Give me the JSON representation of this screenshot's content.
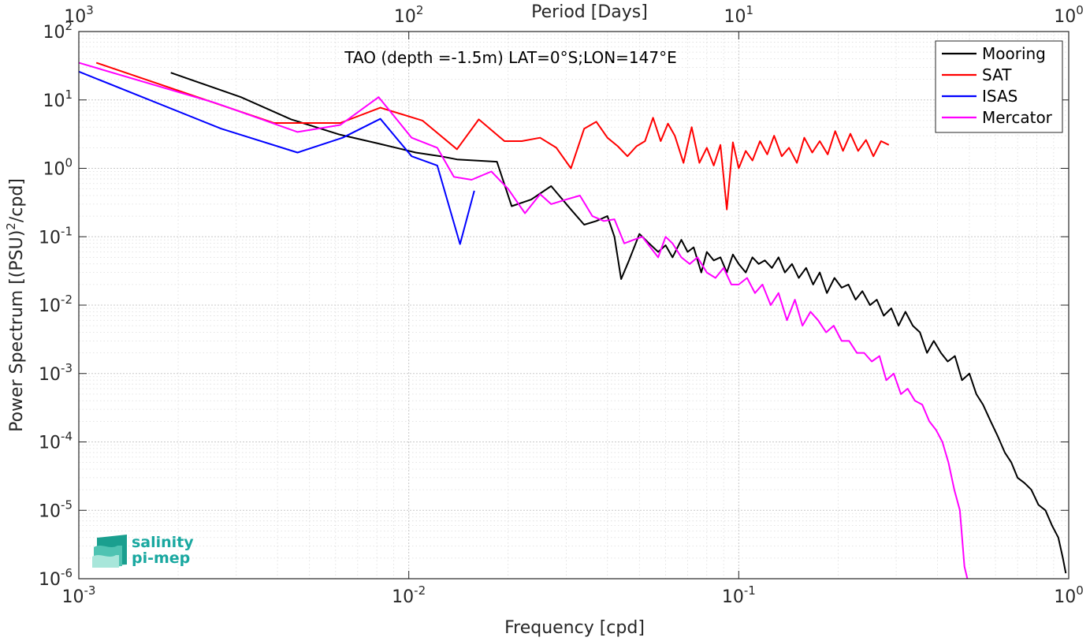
{
  "chart_data": {
    "type": "line",
    "title": "TAO (depth =-1.5m) LAT=0°S;LON=147°E",
    "xlabel": "Frequency [cpd]",
    "ylabel_main": "Power Spectrum [(PSU)",
    "ylabel_exp": "2",
    "ylabel_tail": "/cpd]",
    "top_xlabel": "Period [Days]",
    "xscale": "log",
    "yscale": "log",
    "xlim": [
      0.001,
      1
    ],
    "ylim": [
      1e-06,
      100
    ],
    "grid": true,
    "minor_grid": true,
    "legend_position": "top-right",
    "x_ticks": [
      {
        "value": 0.001,
        "base": "10",
        "exp": "-3"
      },
      {
        "value": 0.01,
        "base": "10",
        "exp": "-2"
      },
      {
        "value": 0.1,
        "base": "10",
        "exp": "-1"
      },
      {
        "value": 1,
        "base": "10",
        "exp": "0"
      }
    ],
    "top_ticks": [
      {
        "value": 1000,
        "base": "10",
        "exp": "3"
      },
      {
        "value": 100,
        "base": "10",
        "exp": "2"
      },
      {
        "value": 10,
        "base": "10",
        "exp": "1"
      },
      {
        "value": 1,
        "base": "10",
        "exp": "0"
      }
    ],
    "y_ticks": [
      {
        "value": 1e-06,
        "base": "10",
        "exp": "-6"
      },
      {
        "value": 1e-05,
        "base": "10",
        "exp": "-5"
      },
      {
        "value": 0.0001,
        "base": "10",
        "exp": "-4"
      },
      {
        "value": 0.001,
        "base": "10",
        "exp": "-3"
      },
      {
        "value": 0.01,
        "base": "10",
        "exp": "-2"
      },
      {
        "value": 0.1,
        "base": "10",
        "exp": "-1"
      },
      {
        "value": 1,
        "base": "10",
        "exp": "0"
      },
      {
        "value": 10,
        "base": "10",
        "exp": "1"
      },
      {
        "value": 100,
        "base": "10",
        "exp": "2"
      }
    ],
    "series": [
      {
        "name": "Mooring",
        "color": "#000000",
        "x": [
          0.0019,
          0.0031,
          0.0044,
          0.0062,
          0.0081,
          0.0105,
          0.0125,
          0.014,
          0.0185,
          0.0205,
          0.0235,
          0.027,
          0.031,
          0.034,
          0.037,
          0.04,
          0.042,
          0.044,
          0.0465,
          0.05,
          0.0535,
          0.057,
          0.06,
          0.063,
          0.067,
          0.07,
          0.073,
          0.077,
          0.08,
          0.084,
          0.088,
          0.092,
          0.096,
          0.1,
          0.105,
          0.11,
          0.115,
          0.12,
          0.126,
          0.132,
          0.138,
          0.145,
          0.152,
          0.16,
          0.168,
          0.176,
          0.185,
          0.195,
          0.205,
          0.215,
          0.226,
          0.237,
          0.25,
          0.262,
          0.275,
          0.29,
          0.305,
          0.32,
          0.337,
          0.354,
          0.372,
          0.39,
          0.41,
          0.43,
          0.452,
          0.475,
          0.5,
          0.525,
          0.55,
          0.58,
          0.61,
          0.64,
          0.67,
          0.7,
          0.735,
          0.77,
          0.81,
          0.85,
          0.89,
          0.93,
          0.96,
          0.98
        ],
        "values": [
          25,
          11,
          5.2,
          3.1,
          2.3,
          1.7,
          1.5,
          1.35,
          1.25,
          0.28,
          0.35,
          0.55,
          0.25,
          0.15,
          0.17,
          0.2,
          0.1,
          0.024,
          0.045,
          0.11,
          0.08,
          0.06,
          0.075,
          0.05,
          0.09,
          0.06,
          0.07,
          0.03,
          0.06,
          0.045,
          0.05,
          0.03,
          0.055,
          0.04,
          0.03,
          0.05,
          0.04,
          0.045,
          0.035,
          0.05,
          0.03,
          0.04,
          0.025,
          0.035,
          0.02,
          0.03,
          0.015,
          0.025,
          0.018,
          0.02,
          0.012,
          0.016,
          0.01,
          0.012,
          0.007,
          0.009,
          0.005,
          0.008,
          0.005,
          0.004,
          0.002,
          0.003,
          0.002,
          0.0015,
          0.0018,
          0.0008,
          0.001,
          0.0005,
          0.00035,
          0.0002,
          0.00012,
          7e-05,
          5e-05,
          3e-05,
          2.5e-05,
          2e-05,
          1.2e-05,
          1e-05,
          6e-06,
          4e-06,
          2e-06,
          1.2e-06
        ]
      },
      {
        "name": "SAT",
        "color": "#ff0000",
        "x": [
          0.00113,
          0.0039,
          0.0062,
          0.0082,
          0.011,
          0.014,
          0.0163,
          0.0195,
          0.022,
          0.025,
          0.028,
          0.031,
          0.034,
          0.037,
          0.04,
          0.043,
          0.046,
          0.049,
          0.052,
          0.055,
          0.058,
          0.061,
          0.064,
          0.068,
          0.072,
          0.076,
          0.08,
          0.084,
          0.088,
          0.092,
          0.096,
          0.1,
          0.105,
          0.11,
          0.116,
          0.122,
          0.128,
          0.135,
          0.142,
          0.15,
          0.158,
          0.167,
          0.176,
          0.186,
          0.196,
          0.207,
          0.218,
          0.23,
          0.243,
          0.256,
          0.27,
          0.285
        ],
        "values": [
          35,
          4.6,
          4.6,
          7.7,
          5.0,
          1.9,
          5.2,
          2.5,
          2.5,
          2.8,
          2.0,
          1.0,
          3.8,
          4.8,
          2.8,
          2.1,
          1.5,
          2.1,
          2.5,
          5.5,
          2.5,
          4.5,
          3.0,
          1.2,
          4.0,
          1.2,
          2.0,
          1.1,
          2.2,
          0.25,
          2.4,
          1.0,
          1.8,
          1.3,
          2.5,
          1.6,
          3.0,
          1.5,
          2.0,
          1.2,
          2.8,
          1.7,
          2.5,
          1.6,
          3.5,
          1.8,
          3.2,
          1.8,
          2.6,
          1.5,
          2.5,
          2.2
        ]
      },
      {
        "name": "ISAS",
        "color": "#0000ff",
        "x": [
          0.001,
          0.0027,
          0.0046,
          0.0063,
          0.0082,
          0.0102,
          0.0122,
          0.0143,
          0.0158
        ],
        "values": [
          26,
          3.8,
          1.7,
          2.8,
          5.3,
          1.5,
          1.1,
          0.078,
          0.47
        ]
      },
      {
        "name": "Mercator",
        "color": "#ff00ff",
        "x": [
          0.001,
          0.0026,
          0.0046,
          0.0062,
          0.0081,
          0.0102,
          0.0122,
          0.0137,
          0.0155,
          0.0178,
          0.02,
          0.0225,
          0.025,
          0.027,
          0.03,
          0.033,
          0.036,
          0.039,
          0.042,
          0.045,
          0.048,
          0.051,
          0.054,
          0.057,
          0.06,
          0.063,
          0.067,
          0.071,
          0.075,
          0.08,
          0.085,
          0.09,
          0.095,
          0.1,
          0.106,
          0.112,
          0.118,
          0.125,
          0.132,
          0.14,
          0.148,
          0.156,
          0.165,
          0.174,
          0.184,
          0.194,
          0.205,
          0.216,
          0.228,
          0.24,
          0.253,
          0.267,
          0.28,
          0.295,
          0.31,
          0.325,
          0.342,
          0.36,
          0.378,
          0.396,
          0.414,
          0.432,
          0.45,
          0.468,
          0.483,
          0.493
        ],
        "values": [
          35,
          9,
          3.4,
          4.3,
          11,
          2.8,
          2.0,
          0.75,
          0.68,
          0.9,
          0.5,
          0.22,
          0.42,
          0.3,
          0.35,
          0.4,
          0.2,
          0.17,
          0.18,
          0.08,
          0.09,
          0.1,
          0.07,
          0.05,
          0.1,
          0.08,
          0.05,
          0.04,
          0.05,
          0.03,
          0.025,
          0.035,
          0.02,
          0.02,
          0.025,
          0.015,
          0.02,
          0.01,
          0.015,
          0.006,
          0.012,
          0.005,
          0.008,
          0.006,
          0.004,
          0.005,
          0.003,
          0.003,
          0.002,
          0.002,
          0.0015,
          0.0018,
          0.0008,
          0.001,
          0.0005,
          0.0006,
          0.0004,
          0.00035,
          0.0002,
          0.00015,
          0.0001,
          5e-05,
          2e-05,
          1e-05,
          1.5e-06,
          1e-06
        ]
      }
    ]
  },
  "logo": {
    "line1": "salinity",
    "line2": "pi-mep",
    "color": "#1aa8a0"
  }
}
